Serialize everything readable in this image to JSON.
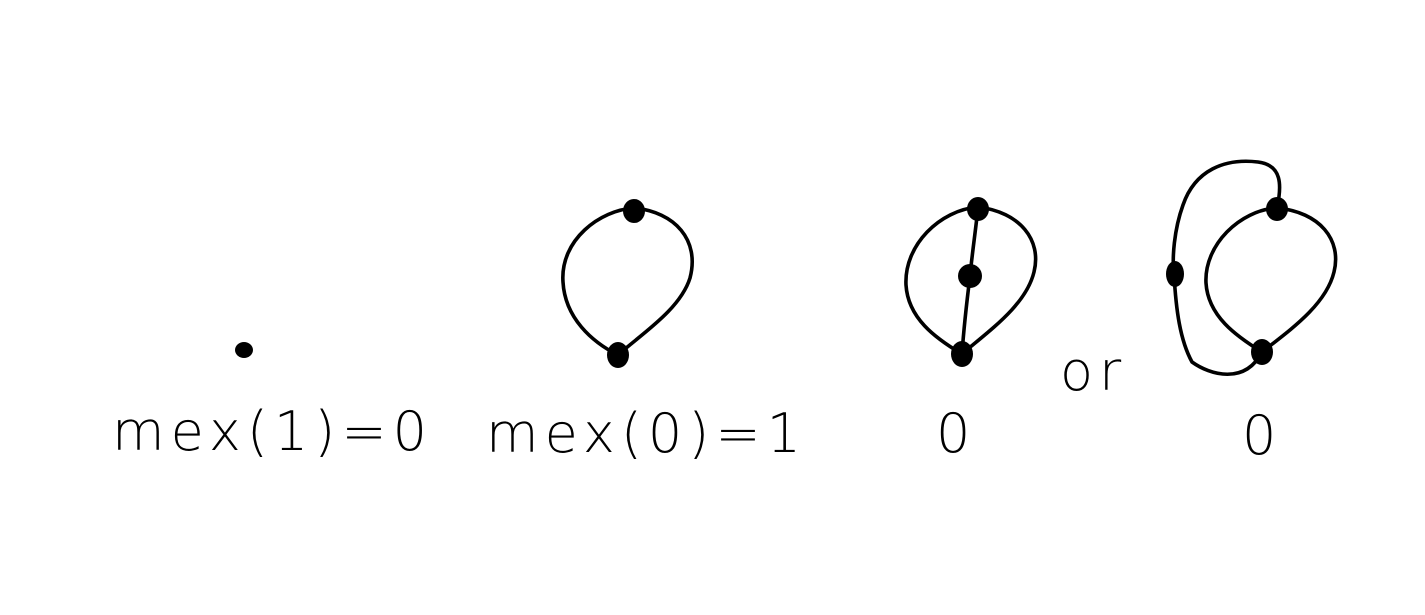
{
  "labels": {
    "mex_one": "mex(1)=0",
    "mex_zero": "mex(0)=1",
    "result_a": "0",
    "connector": "or",
    "result_b": "0"
  },
  "colors": {
    "background": "#ffffff",
    "ink": "#000000"
  }
}
